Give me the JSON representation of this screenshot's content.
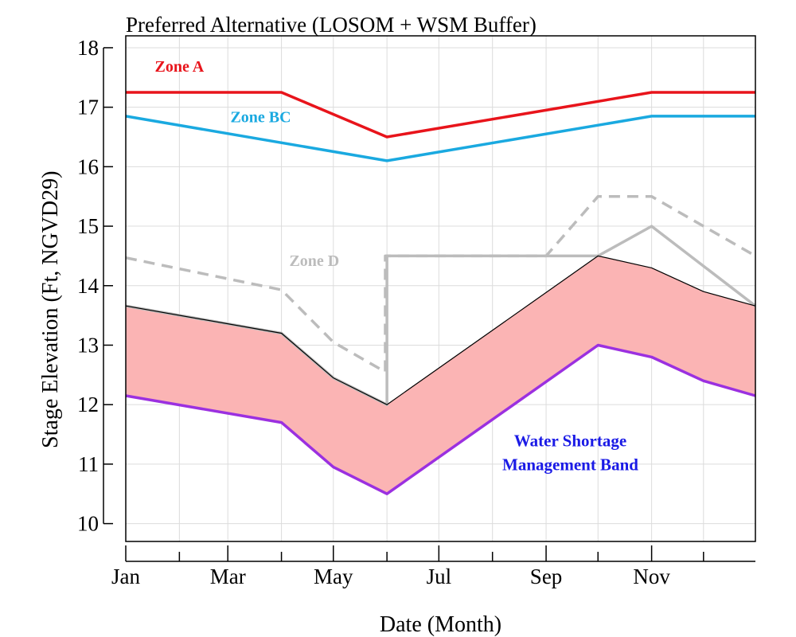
{
  "chart_data": {
    "type": "line",
    "title": "Preferred Alternative (LOSOM + WSM Buffer)",
    "xlabel": "Date (Month)",
    "ylabel": "Stage Elevation (Ft, NGVD29)",
    "xlim": [
      "Jan 1",
      "Dec 31"
    ],
    "ylim": [
      9.7,
      18.4
    ],
    "x_ticks": [
      "Jan",
      "Mar",
      "May",
      "Jul",
      "Sep",
      "Nov"
    ],
    "y_ticks": [
      10,
      11,
      12,
      13,
      14,
      15,
      16,
      17,
      18
    ],
    "grid": true,
    "series": [
      {
        "name": "Zone A",
        "color": "#e8141b",
        "style": "solid",
        "points": [
          [
            "Jan 1",
            17.25
          ],
          [
            "Apr 1",
            17.25
          ],
          [
            "Jun 1",
            16.5
          ],
          [
            "Nov 1",
            17.25
          ],
          [
            "Dec 31",
            17.25
          ]
        ]
      },
      {
        "name": "Zone BC",
        "color": "#1aa9e0",
        "style": "solid",
        "points": [
          [
            "Jan 1",
            16.85
          ],
          [
            "Jun 1",
            16.1
          ],
          [
            "Nov 1",
            16.85
          ],
          [
            "Dec 31",
            16.85
          ]
        ]
      },
      {
        "name": "Zone D",
        "color": "#bcbcbc",
        "style": "dashed",
        "points": [
          [
            "Jan 1",
            14.47
          ],
          [
            "Apr 1",
            13.93
          ],
          [
            "May 1",
            13.05
          ],
          [
            "May 31",
            12.55
          ],
          [
            "May 31",
            14.5
          ],
          [
            "Sep 1",
            14.5
          ],
          [
            "Oct 1",
            15.5
          ],
          [
            "Nov 1",
            15.5
          ],
          [
            "Dec 31",
            14.5
          ]
        ]
      },
      {
        "name": "",
        "color": "#bcbcbc",
        "style": "solid",
        "points": [
          [
            "Jan 1",
            13.66
          ],
          [
            "Apr 1",
            13.2
          ],
          [
            "May 1",
            12.45
          ],
          [
            "Jun 1",
            12.0
          ],
          [
            "Jun 1",
            14.5
          ],
          [
            "Oct 1",
            14.5
          ],
          [
            "Nov 1",
            15.0
          ],
          [
            "Dec 31",
            13.66
          ]
        ]
      },
      {
        "name": "",
        "color": "#000000",
        "style": "solid-thin",
        "points": [
          [
            "Jan 1",
            13.66
          ],
          [
            "Apr 1",
            13.2
          ],
          [
            "May 1",
            12.45
          ],
          [
            "Jun 1",
            12.0
          ],
          [
            "Oct 1",
            14.5
          ],
          [
            "Nov 1",
            14.3
          ],
          [
            "Dec 1",
            13.9
          ],
          [
            "Dec 31",
            13.66
          ]
        ]
      },
      {
        "name": "Water Shortage Management Band",
        "color": "#9b30e0",
        "style": "solid",
        "points": [
          [
            "Jan 1",
            12.15
          ],
          [
            "Apr 1",
            11.7
          ],
          [
            "May 1",
            10.95
          ],
          [
            "Jun 1",
            10.5
          ],
          [
            "Oct 1",
            13.0
          ],
          [
            "Nov 1",
            12.8
          ],
          [
            "Dec 1",
            12.4
          ],
          [
            "Dec 31",
            12.15
          ]
        ]
      }
    ],
    "band": {
      "name": "Water Shortage Management Band",
      "fill": "#fbb4b4",
      "upper": [
        [
          "Jan 1",
          13.66
        ],
        [
          "Apr 1",
          13.2
        ],
        [
          "May 1",
          12.45
        ],
        [
          "Jun 1",
          12.0
        ],
        [
          "Oct 1",
          14.5
        ],
        [
          "Nov 1",
          14.3
        ],
        [
          "Dec 1",
          13.9
        ],
        [
          "Dec 31",
          13.66
        ]
      ],
      "lower": [
        [
          "Jan 1",
          12.15
        ],
        [
          "Apr 1",
          11.7
        ],
        [
          "May 1",
          10.95
        ],
        [
          "Jun 1",
          10.5
        ],
        [
          "Oct 1",
          13.0
        ],
        [
          "Nov 1",
          12.8
        ],
        [
          "Dec 1",
          12.4
        ],
        [
          "Dec 31",
          12.15
        ]
      ]
    },
    "annotations": [
      {
        "text": "Zone A",
        "color": "#e8141b",
        "at": [
          "Feb 1",
          17.6
        ]
      },
      {
        "text": "Zone BC",
        "color": "#1aa9e0",
        "at": [
          "Mar 20",
          16.75
        ]
      },
      {
        "text": "Zone D",
        "color": "#bcbcbc",
        "at": [
          "Apr 20",
          14.33
        ]
      },
      {
        "text": "Water Shortage",
        "color": "#1a1ae6",
        "at": [
          "Sep 15",
          11.3
        ]
      },
      {
        "text": "Management Band",
        "color": "#1a1ae6",
        "at": [
          "Sep 15",
          10.9
        ]
      }
    ]
  }
}
